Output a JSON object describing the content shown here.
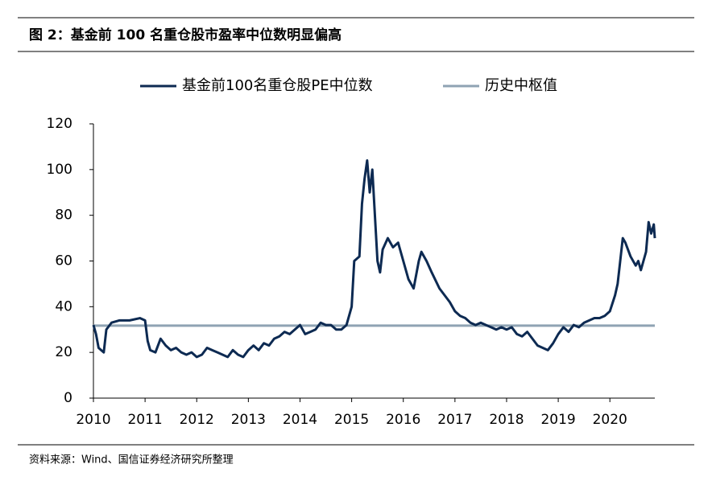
{
  "chart_data": {
    "type": "line",
    "title": "图 2：基金前 100 名重仓股市盈率中位数明显偏高",
    "source": "资料来源：Wind、国信证券经济研究所整理",
    "xlim": [
      2010,
      2020.87
    ],
    "xticks": [
      2010,
      2011,
      2012,
      2013,
      2014,
      2015,
      2016,
      2017,
      2018,
      2019,
      2020
    ],
    "ylim": [
      0,
      120
    ],
    "yticks": [
      0,
      20,
      40,
      60,
      80,
      100,
      120
    ],
    "grid": false,
    "legend": "top",
    "series": [
      {
        "name": "基金前100名重仓股PE中位数",
        "color": "#0d2a52",
        "x": [
          2010.0,
          2010.05,
          2010.1,
          2010.15,
          2010.2,
          2010.25,
          2010.35,
          2010.5,
          2010.7,
          2010.9,
          2011.0,
          2011.05,
          2011.1,
          2011.2,
          2011.3,
          2011.4,
          2011.5,
          2011.6,
          2011.7,
          2011.8,
          2011.9,
          2012.0,
          2012.1,
          2012.2,
          2012.3,
          2012.4,
          2012.5,
          2012.6,
          2012.7,
          2012.8,
          2012.9,
          2013.0,
          2013.1,
          2013.2,
          2013.3,
          2013.4,
          2013.5,
          2013.6,
          2013.7,
          2013.8,
          2013.9,
          2014.0,
          2014.1,
          2014.2,
          2014.3,
          2014.4,
          2014.5,
          2014.6,
          2014.7,
          2014.8,
          2014.9,
          2015.0,
          2015.05,
          2015.15,
          2015.2,
          2015.25,
          2015.3,
          2015.35,
          2015.4,
          2015.45,
          2015.5,
          2015.55,
          2015.6,
          2015.7,
          2015.8,
          2015.9,
          2016.0,
          2016.1,
          2016.2,
          2016.3,
          2016.35,
          2016.45,
          2016.55,
          2016.7,
          2016.8,
          2016.9,
          2017.0,
          2017.1,
          2017.2,
          2017.3,
          2017.4,
          2017.5,
          2017.6,
          2017.7,
          2017.8,
          2017.9,
          2018.0,
          2018.1,
          2018.2,
          2018.3,
          2018.4,
          2018.5,
          2018.6,
          2018.7,
          2018.8,
          2018.9,
          2019.0,
          2019.1,
          2019.2,
          2019.3,
          2019.4,
          2019.5,
          2019.6,
          2019.7,
          2019.8,
          2019.9,
          2020.0,
          2020.1,
          2020.15,
          2020.2,
          2020.25,
          2020.3,
          2020.4,
          2020.5,
          2020.55,
          2020.6,
          2020.7,
          2020.75,
          2020.8,
          2020.85,
          2020.87
        ],
        "values": [
          32,
          28,
          22,
          21,
          20,
          30,
          33,
          34,
          34,
          35,
          34,
          25,
          21,
          20,
          26,
          23,
          21,
          22,
          20,
          19,
          20,
          18,
          19,
          22,
          21,
          20,
          19,
          18,
          21,
          19,
          18,
          21,
          23,
          21,
          24,
          23,
          26,
          27,
          29,
          28,
          30,
          32,
          28,
          29,
          30,
          33,
          32,
          32,
          30,
          30,
          32,
          40,
          60,
          62,
          85,
          96,
          104,
          90,
          100,
          80,
          60,
          55,
          65,
          70,
          66,
          68,
          60,
          52,
          48,
          60,
          64,
          60,
          55,
          48,
          45,
          42,
          38,
          36,
          35,
          33,
          32,
          33,
          32,
          31,
          30,
          31,
          30,
          31,
          28,
          27,
          29,
          26,
          23,
          22,
          21,
          24,
          28,
          31,
          29,
          32,
          31,
          33,
          34,
          35,
          35,
          36,
          38,
          45,
          50,
          60,
          70,
          68,
          62,
          58,
          60,
          56,
          64,
          77,
          72,
          76,
          70
        ]
      },
      {
        "name": "历史中枢值",
        "color": "#8fa3b3",
        "x": [
          2010,
          2020.87
        ],
        "values": [
          31.7,
          31.7
        ]
      }
    ]
  }
}
